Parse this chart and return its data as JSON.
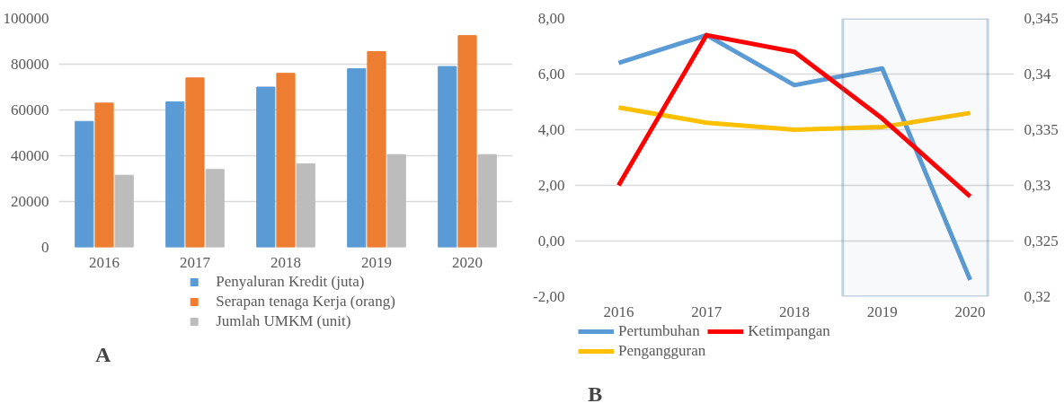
{
  "chart_data": [
    {
      "type": "bar",
      "categories": [
        "2016",
        "2017",
        "2018",
        "2019",
        "2020"
      ],
      "series": [
        {
          "name": "Penyaluran Kredit (juta)",
          "color": "#5b9bd5",
          "values": [
            55000,
            63500,
            70000,
            78000,
            79000
          ]
        },
        {
          "name": "Serapan tenaga Kerja (orang)",
          "color": "#ed7d31",
          "values": [
            63000,
            74000,
            76000,
            85500,
            92500
          ]
        },
        {
          "name": "Jumlah UMKM (unit)",
          "color": "#bcbcbc",
          "values": [
            31500,
            34000,
            36500,
            40500,
            40500
          ]
        }
      ],
      "ylim": [
        0,
        100000
      ],
      "yticks": [
        0,
        20000,
        40000,
        60000,
        80000,
        100000
      ],
      "grid": "y",
      "legend": "bottom",
      "annotations": [
        "A"
      ]
    },
    {
      "type": "line",
      "categories": [
        "2016",
        "2017",
        "2018",
        "2019",
        "2020"
      ],
      "series": [
        {
          "name": "Pertumbuhan",
          "color": "#5b9bd5",
          "values": [
            6.4,
            7.4,
            5.6,
            6.2,
            -1.4
          ]
        },
        {
          "name": "Pengangguran",
          "color": "#ffc000",
          "values": [
            4.8,
            4.25,
            4.0,
            4.1,
            4.6
          ]
        },
        {
          "name": "Ketimpangan",
          "color": "#ff0000",
          "axis": "y2",
          "values": [
            0.33,
            0.3435,
            0.342,
            0.336,
            0.329
          ]
        }
      ],
      "ylim": [
        -2,
        8
      ],
      "yticks": [
        {
          "value": -2,
          "label": "-2,00"
        },
        {
          "value": 0,
          "label": "0,00"
        },
        {
          "value": 2,
          "label": "2,00"
        },
        {
          "value": 4,
          "label": "4,00"
        },
        {
          "value": 6,
          "label": "6,00"
        },
        {
          "value": 8,
          "label": "8,00"
        }
      ],
      "y2lim": [
        0.32,
        0.345
      ],
      "y2ticks": [
        {
          "value": 0.32,
          "label": "0,32"
        },
        {
          "value": 0.325,
          "label": "0,325"
        },
        {
          "value": 0.33,
          "label": "0,33"
        },
        {
          "value": 0.335,
          "label": "0,335"
        },
        {
          "value": 0.34,
          "label": "0,34"
        },
        {
          "value": 0.345,
          "label": "0,345"
        }
      ],
      "bands": [
        {
          "axis": "x",
          "from": "2019",
          "to": "2020",
          "color": "#41719c"
        }
      ],
      "grid": "y",
      "legend": "bottom",
      "line_style": "solid",
      "marker": "none",
      "annotations": [
        "B"
      ]
    }
  ]
}
